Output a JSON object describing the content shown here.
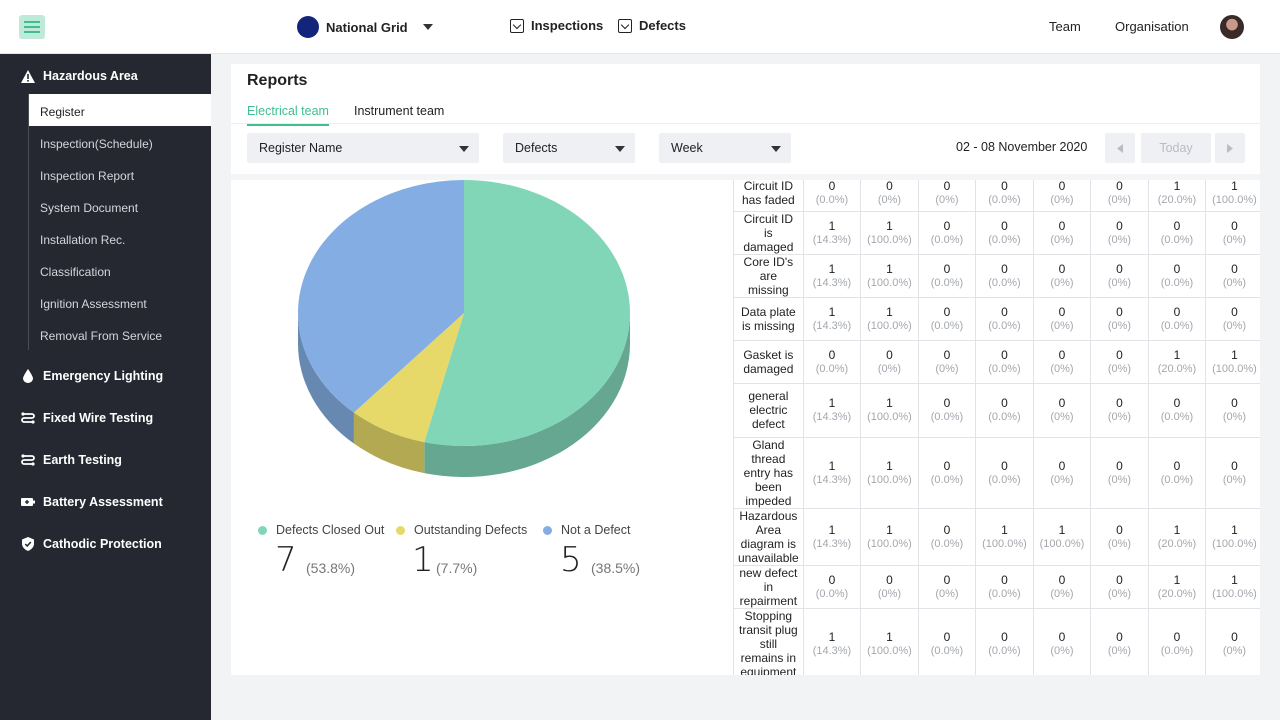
{
  "topbar": {
    "org_name": "National Grid",
    "org_logo_text": "national grid",
    "nav": [
      {
        "label": "Inspections",
        "icon": "inspections-icon"
      },
      {
        "label": "Defects",
        "icon": "defects-icon"
      }
    ],
    "links": [
      "Team",
      "Organisation"
    ]
  },
  "sidebar": {
    "sections": [
      {
        "label": "Hazardous Area",
        "icon": "warning-icon"
      },
      {
        "label": "Emergency Lighting",
        "icon": "drop-icon"
      },
      {
        "label": "Fixed Wire Testing",
        "icon": "wire-icon"
      },
      {
        "label": "Earth Testing",
        "icon": "wire-icon"
      },
      {
        "label": "Battery Assessment",
        "icon": "battery-icon"
      },
      {
        "label": "Cathodic Protection",
        "icon": "shield-icon"
      }
    ],
    "sub_items": [
      "Register",
      "Inspection(Schedule)",
      "Inspection Report",
      "System Document",
      "Installation Rec.",
      "Classification",
      "Ignition Assessment",
      "Removal From Service"
    ],
    "active_sub": "Register"
  },
  "main": {
    "title": "Reports",
    "tabs": [
      "Electrical team",
      "Instrument team"
    ],
    "filters": {
      "register": "Register Name",
      "type": "Defects",
      "period": "Week"
    },
    "date_range": "02 - 08 November 2020",
    "today_label": "Today"
  },
  "colors": {
    "closed": "#82d6b8",
    "outstanding": "#e6d96a",
    "not_defect": "#84aee3",
    "accent": "#3fbf8f"
  },
  "chart_data": {
    "type": "pie",
    "slices": [
      {
        "label": "Defects Closed Out",
        "value": 7,
        "percent": "(53.8%)"
      },
      {
        "label": "Outstanding Defects",
        "value": 1,
        "percent": "(7.7%)"
      },
      {
        "label": "Not a Defect",
        "value": 5,
        "percent": "(38.5%)"
      }
    ]
  },
  "table": {
    "rows": [
      {
        "label": "Circuit ID has faded",
        "cells": [
          [
            "0",
            "(0.0%)"
          ],
          [
            "0",
            "(0%)"
          ],
          [
            "0",
            "(0%)"
          ],
          [
            "0",
            "(0.0%)"
          ],
          [
            "0",
            "(0%)"
          ],
          [
            "0",
            "(0%)"
          ],
          [
            "1",
            "(20.0%)"
          ],
          [
            "1",
            "(100.0%)"
          ]
        ]
      },
      {
        "label": "Circuit ID is damaged",
        "cells": [
          [
            "1",
            "(14.3%)"
          ],
          [
            "1",
            "(100.0%)"
          ],
          [
            "0",
            "(0.0%)"
          ],
          [
            "0",
            "(0.0%)"
          ],
          [
            "0",
            "(0%)"
          ],
          [
            "0",
            "(0%)"
          ],
          [
            "0",
            "(0.0%)"
          ],
          [
            "0",
            "(0%)"
          ]
        ]
      },
      {
        "label": "Core ID's are missing",
        "cells": [
          [
            "1",
            "(14.3%)"
          ],
          [
            "1",
            "(100.0%)"
          ],
          [
            "0",
            "(0.0%)"
          ],
          [
            "0",
            "(0.0%)"
          ],
          [
            "0",
            "(0%)"
          ],
          [
            "0",
            "(0%)"
          ],
          [
            "0",
            "(0.0%)"
          ],
          [
            "0",
            "(0%)"
          ]
        ]
      },
      {
        "label": "Data plate is missing",
        "cells": [
          [
            "1",
            "(14.3%)"
          ],
          [
            "1",
            "(100.0%)"
          ],
          [
            "0",
            "(0.0%)"
          ],
          [
            "0",
            "(0.0%)"
          ],
          [
            "0",
            "(0%)"
          ],
          [
            "0",
            "(0%)"
          ],
          [
            "0",
            "(0.0%)"
          ],
          [
            "0",
            "(0%)"
          ]
        ]
      },
      {
        "label": "Gasket is damaged",
        "cells": [
          [
            "0",
            "(0.0%)"
          ],
          [
            "0",
            "(0%)"
          ],
          [
            "0",
            "(0%)"
          ],
          [
            "0",
            "(0.0%)"
          ],
          [
            "0",
            "(0%)"
          ],
          [
            "0",
            "(0%)"
          ],
          [
            "1",
            "(20.0%)"
          ],
          [
            "1",
            "(100.0%)"
          ]
        ]
      },
      {
        "label": "general electric defect",
        "cells": [
          [
            "1",
            "(14.3%)"
          ],
          [
            "1",
            "(100.0%)"
          ],
          [
            "0",
            "(0.0%)"
          ],
          [
            "0",
            "(0.0%)"
          ],
          [
            "0",
            "(0%)"
          ],
          [
            "0",
            "(0%)"
          ],
          [
            "0",
            "(0.0%)"
          ],
          [
            "0",
            "(0%)"
          ]
        ]
      },
      {
        "label": "Gland thread entry has been impeded",
        "cells": [
          [
            "1",
            "(14.3%)"
          ],
          [
            "1",
            "(100.0%)"
          ],
          [
            "0",
            "(0.0%)"
          ],
          [
            "0",
            "(0.0%)"
          ],
          [
            "0",
            "(0%)"
          ],
          [
            "0",
            "(0%)"
          ],
          [
            "0",
            "(0.0%)"
          ],
          [
            "0",
            "(0%)"
          ]
        ]
      },
      {
        "label": "Hazardous Area diagram is unavailable",
        "cells": [
          [
            "1",
            "(14.3%)"
          ],
          [
            "1",
            "(100.0%)"
          ],
          [
            "0",
            "(0.0%)"
          ],
          [
            "1",
            "(100.0%)"
          ],
          [
            "1",
            "(100.0%)"
          ],
          [
            "0",
            "(0%)"
          ],
          [
            "1",
            "(20.0%)"
          ],
          [
            "1",
            "(100.0%)"
          ]
        ]
      },
      {
        "label": "new defect in repairment",
        "cells": [
          [
            "0",
            "(0.0%)"
          ],
          [
            "0",
            "(0%)"
          ],
          [
            "0",
            "(0%)"
          ],
          [
            "0",
            "(0.0%)"
          ],
          [
            "0",
            "(0%)"
          ],
          [
            "0",
            "(0%)"
          ],
          [
            "1",
            "(20.0%)"
          ],
          [
            "1",
            "(100.0%)"
          ]
        ]
      },
      {
        "label": "Stopping transit plug still remains in equipment",
        "cells": [
          [
            "1",
            "(14.3%)"
          ],
          [
            "1",
            "(100.0%)"
          ],
          [
            "0",
            "(0.0%)"
          ],
          [
            "0",
            "(0.0%)"
          ],
          [
            "0",
            "(0%)"
          ],
          [
            "0",
            "(0%)"
          ],
          [
            "0",
            "(0.0%)"
          ],
          [
            "0",
            "(0%)"
          ]
        ]
      }
    ]
  }
}
